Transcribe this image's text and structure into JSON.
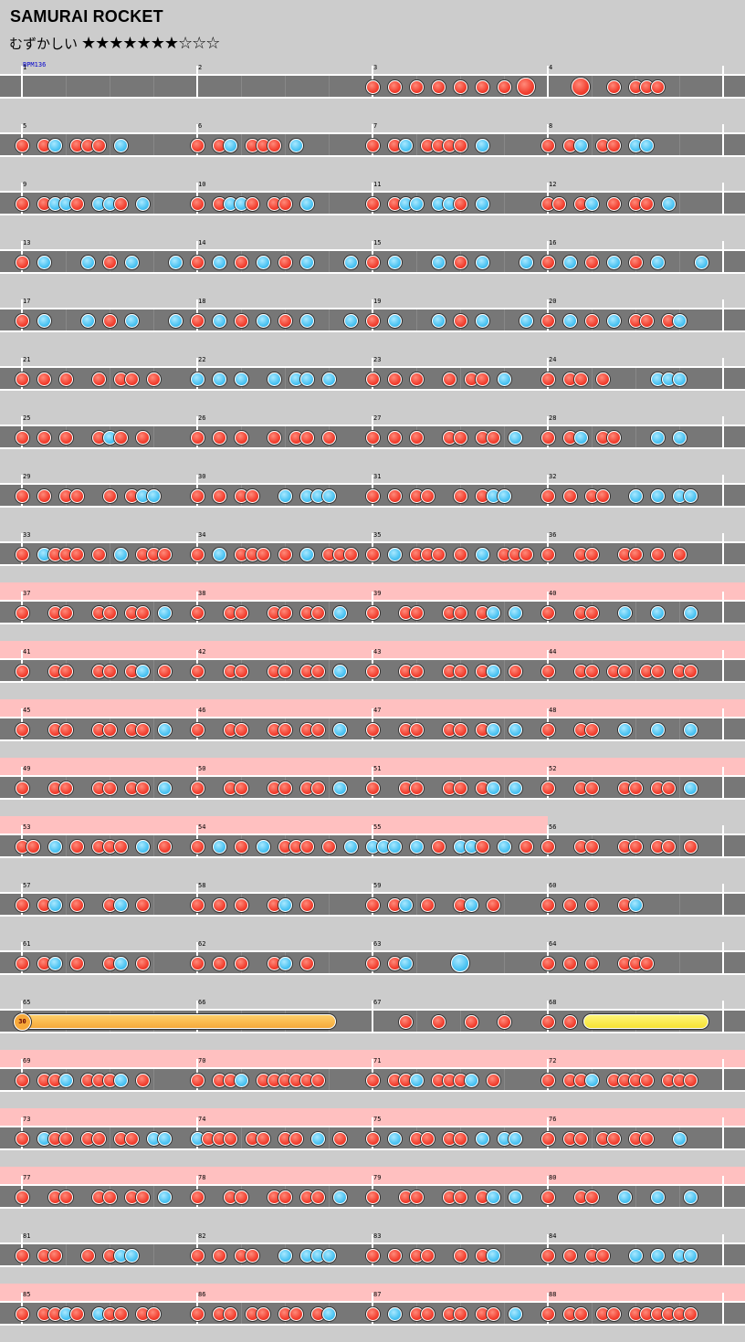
{
  "song": {
    "title": "SAMURAI ROCKET",
    "difficulty_label": "むずかしい",
    "stars": "★★★★★★★☆☆☆",
    "bpm_label": "BPM136",
    "balloon_count": "30"
  },
  "colors": {
    "don": "#f24030",
    "ka": "#4cc3f2",
    "gogo": "#ffc0c0",
    "lane": "#777777",
    "drumroll": "#f5a93a",
    "yellow_roll": "#f7e231"
  },
  "note_legend": {
    "r": "don (red)",
    "b": "ka (blue)",
    "R": "big don",
    "B": "big ka",
    "-": "rest"
  },
  "rows": [
    {
      "measures": [
        "1",
        "2",
        "3",
        "4"
      ],
      "gogo": 0,
      "bars": [
        "----------------",
        "----------------",
        "r-r-r-r-r-r-r-R-",
        "---R--r-rrr-----"
      ]
    },
    {
      "measures": [
        "5",
        "6",
        "7",
        "8"
      ],
      "gogo": 0,
      "bars": [
        "r-rb-rrr-b------",
        "r-rb-rrr-b------",
        "r-rb-rrrr-b-----",
        "r-rb-rr-bb------"
      ]
    },
    {
      "measures": [
        "9",
        "10",
        "11",
        "12"
      ],
      "gogo": 0,
      "bars": [
        "r-rbbr-bbr-b----",
        "r-rbbr-rr-b-----",
        "r-rbb-bbr-b-----",
        "rr-rb-r-rr-b----"
      ]
    },
    {
      "measures": [
        "13",
        "14",
        "15",
        "16"
      ],
      "gogo": 0,
      "bars": [
        "r-b---b-r-b---b-",
        "r-b-r-b-r-b---b-",
        "r-b---b-r-b---b-",
        "r-b-r-b-r-b---b-"
      ]
    },
    {
      "measures": [
        "17",
        "18",
        "19",
        "20"
      ],
      "gogo": 0,
      "bars": [
        "r-b---b-r-b---b-",
        "r-b-r-b-r-b---b-",
        "r-b---b-r-b---b-",
        "r-b-r-b-rr-rb---"
      ]
    },
    {
      "measures": [
        "21",
        "22",
        "23",
        "24"
      ],
      "gogo": 0,
      "bars": [
        "r-r-r--r-rr-r---",
        "b-b-b--b-bb-b---",
        "r-r-r--r-rr-b---",
        "r-rr-r----bbb---"
      ]
    },
    {
      "measures": [
        "25",
        "26",
        "27",
        "28"
      ],
      "gogo": 0,
      "bars": [
        "r-r-r--rbr-r----",
        "r-r-r--r-rr-r---",
        "r-r-r--rr-rr-b--",
        "r-rb-rr---b-b---"
      ]
    },
    {
      "measures": [
        "29",
        "30",
        "31",
        "32"
      ],
      "gogo": 0,
      "bars": [
        "r-r-rr--r-rbb---",
        "r-r-rr--b-bbb---",
        "r-r-rr--r-rbb---",
        "r-r-rr--b-b-bb--"
      ]
    },
    {
      "measures": [
        "33",
        "34",
        "35",
        "36"
      ],
      "gogo": 0,
      "bars": [
        "r-brrr-r-b-rrr--",
        "r-b-rrr-r-b-rrr-",
        "r-b-rrr-r-b-rrr-",
        "r--rr--rr-r-r---"
      ]
    },
    {
      "measures": [
        "37",
        "38",
        "39",
        "40"
      ],
      "gogo": 1,
      "bars": [
        "r--rr--rr-rr-b--",
        "r--rr--rr-rr-b--",
        "r--rr--rr-rb-b--",
        "r--rr--b--b--b--"
      ]
    },
    {
      "measures": [
        "41",
        "42",
        "43",
        "44"
      ],
      "gogo": 1,
      "bars": [
        "r--rr--rr-rb-r--",
        "r--rr--rr-rr-b--",
        "r--rr--rr-rb-r--",
        "r--rr-rr-rr-rr--"
      ]
    },
    {
      "measures": [
        "45",
        "46",
        "47",
        "48"
      ],
      "gogo": 1,
      "bars": [
        "r--rr--rr-rr-b--",
        "r--rr--rr-rr-b--",
        "r--rr--rr-rb-b--",
        "r--rr--b--b--b--"
      ]
    },
    {
      "measures": [
        "49",
        "50",
        "51",
        "52"
      ],
      "gogo": 1,
      "bars": [
        "r--rr--rr-rr-b--",
        "r--rr--rr-rr-b--",
        "r--rr--rr-rb-b--",
        "r--rr--rr-rr-b--"
      ]
    },
    {
      "measures": [
        "53",
        "54",
        "55",
        "56"
      ],
      "gogo": 1,
      "bars": [
        "rr-b-r-rrr-b-r--",
        "r-b-r-b-rrr-r-b-",
        "bbb-b-r-bbr-b-r-",
        "r--rr--rr-rr-r--"
      ]
    },
    {
      "measures": [
        "57",
        "58",
        "59",
        "60"
      ],
      "gogo": 0,
      "bars": [
        "r-rb-r--rb-r----",
        "r-r-r--rb-r-----",
        "r-rb-r--rb-r----",
        "r-r-r--rb-------"
      ]
    },
    {
      "measures": [
        "61",
        "62",
        "63",
        "64"
      ],
      "gogo": 0,
      "bars": [
        "r-rb-r--rb-r----",
        "r-r-r--rb-r-----",
        "r-rb----B-------",
        "r-r-r--rrr------"
      ]
    },
    {
      "measures": [
        "65",
        "66",
        "67",
        "68"
      ],
      "gogo": 0,
      "bars": [
        "----------------",
        "----------------",
        "---r--r--r--r---",
        "r-r-------------"
      ]
    },
    {
      "measures": [
        "69",
        "70",
        "71",
        "72"
      ],
      "gogo": 1,
      "bars": [
        "r-rrb-rrrb-r----",
        "r-rrb-rrrrrr----",
        "r-rrb-rrrb-r----",
        "r-rrb-rrrr-rrr--"
      ]
    },
    {
      "measures": [
        "73",
        "74",
        "75",
        "76"
      ],
      "gogo": 1,
      "bars": [
        "r-brr-rr-rr-bb--",
        "brrr-rr-rr-b-r--",
        "r-b-rr-rr-b-bb--",
        "r-rr-rr-rr--b---"
      ]
    },
    {
      "measures": [
        "77",
        "78",
        "79",
        "80"
      ],
      "gogo": 1,
      "bars": [
        "r--rr--rr-rr-b--",
        "r--rr--rr-rr-b--",
        "r--rr--rr-rb-b--",
        "r--rr--b--b--b--"
      ]
    },
    {
      "measures": [
        "81",
        "82",
        "83",
        "84"
      ],
      "gogo": 0,
      "bars": [
        "r-rr--r-rbb-----",
        "r-r-rr--b-bbb---",
        "r-r-rr--r-rb----",
        "r-r-rr--b-b-bb--"
      ]
    },
    {
      "measures": [
        "85",
        "86",
        "87",
        "88"
      ],
      "gogo": 1,
      "bars": [
        "r-rrbr-brr-rr---",
        "r-rr-rr-rr-rb---",
        "r-b-rr-rr-rr-b--",
        "r-rr-rr-rrrrrr--"
      ]
    }
  ]
}
